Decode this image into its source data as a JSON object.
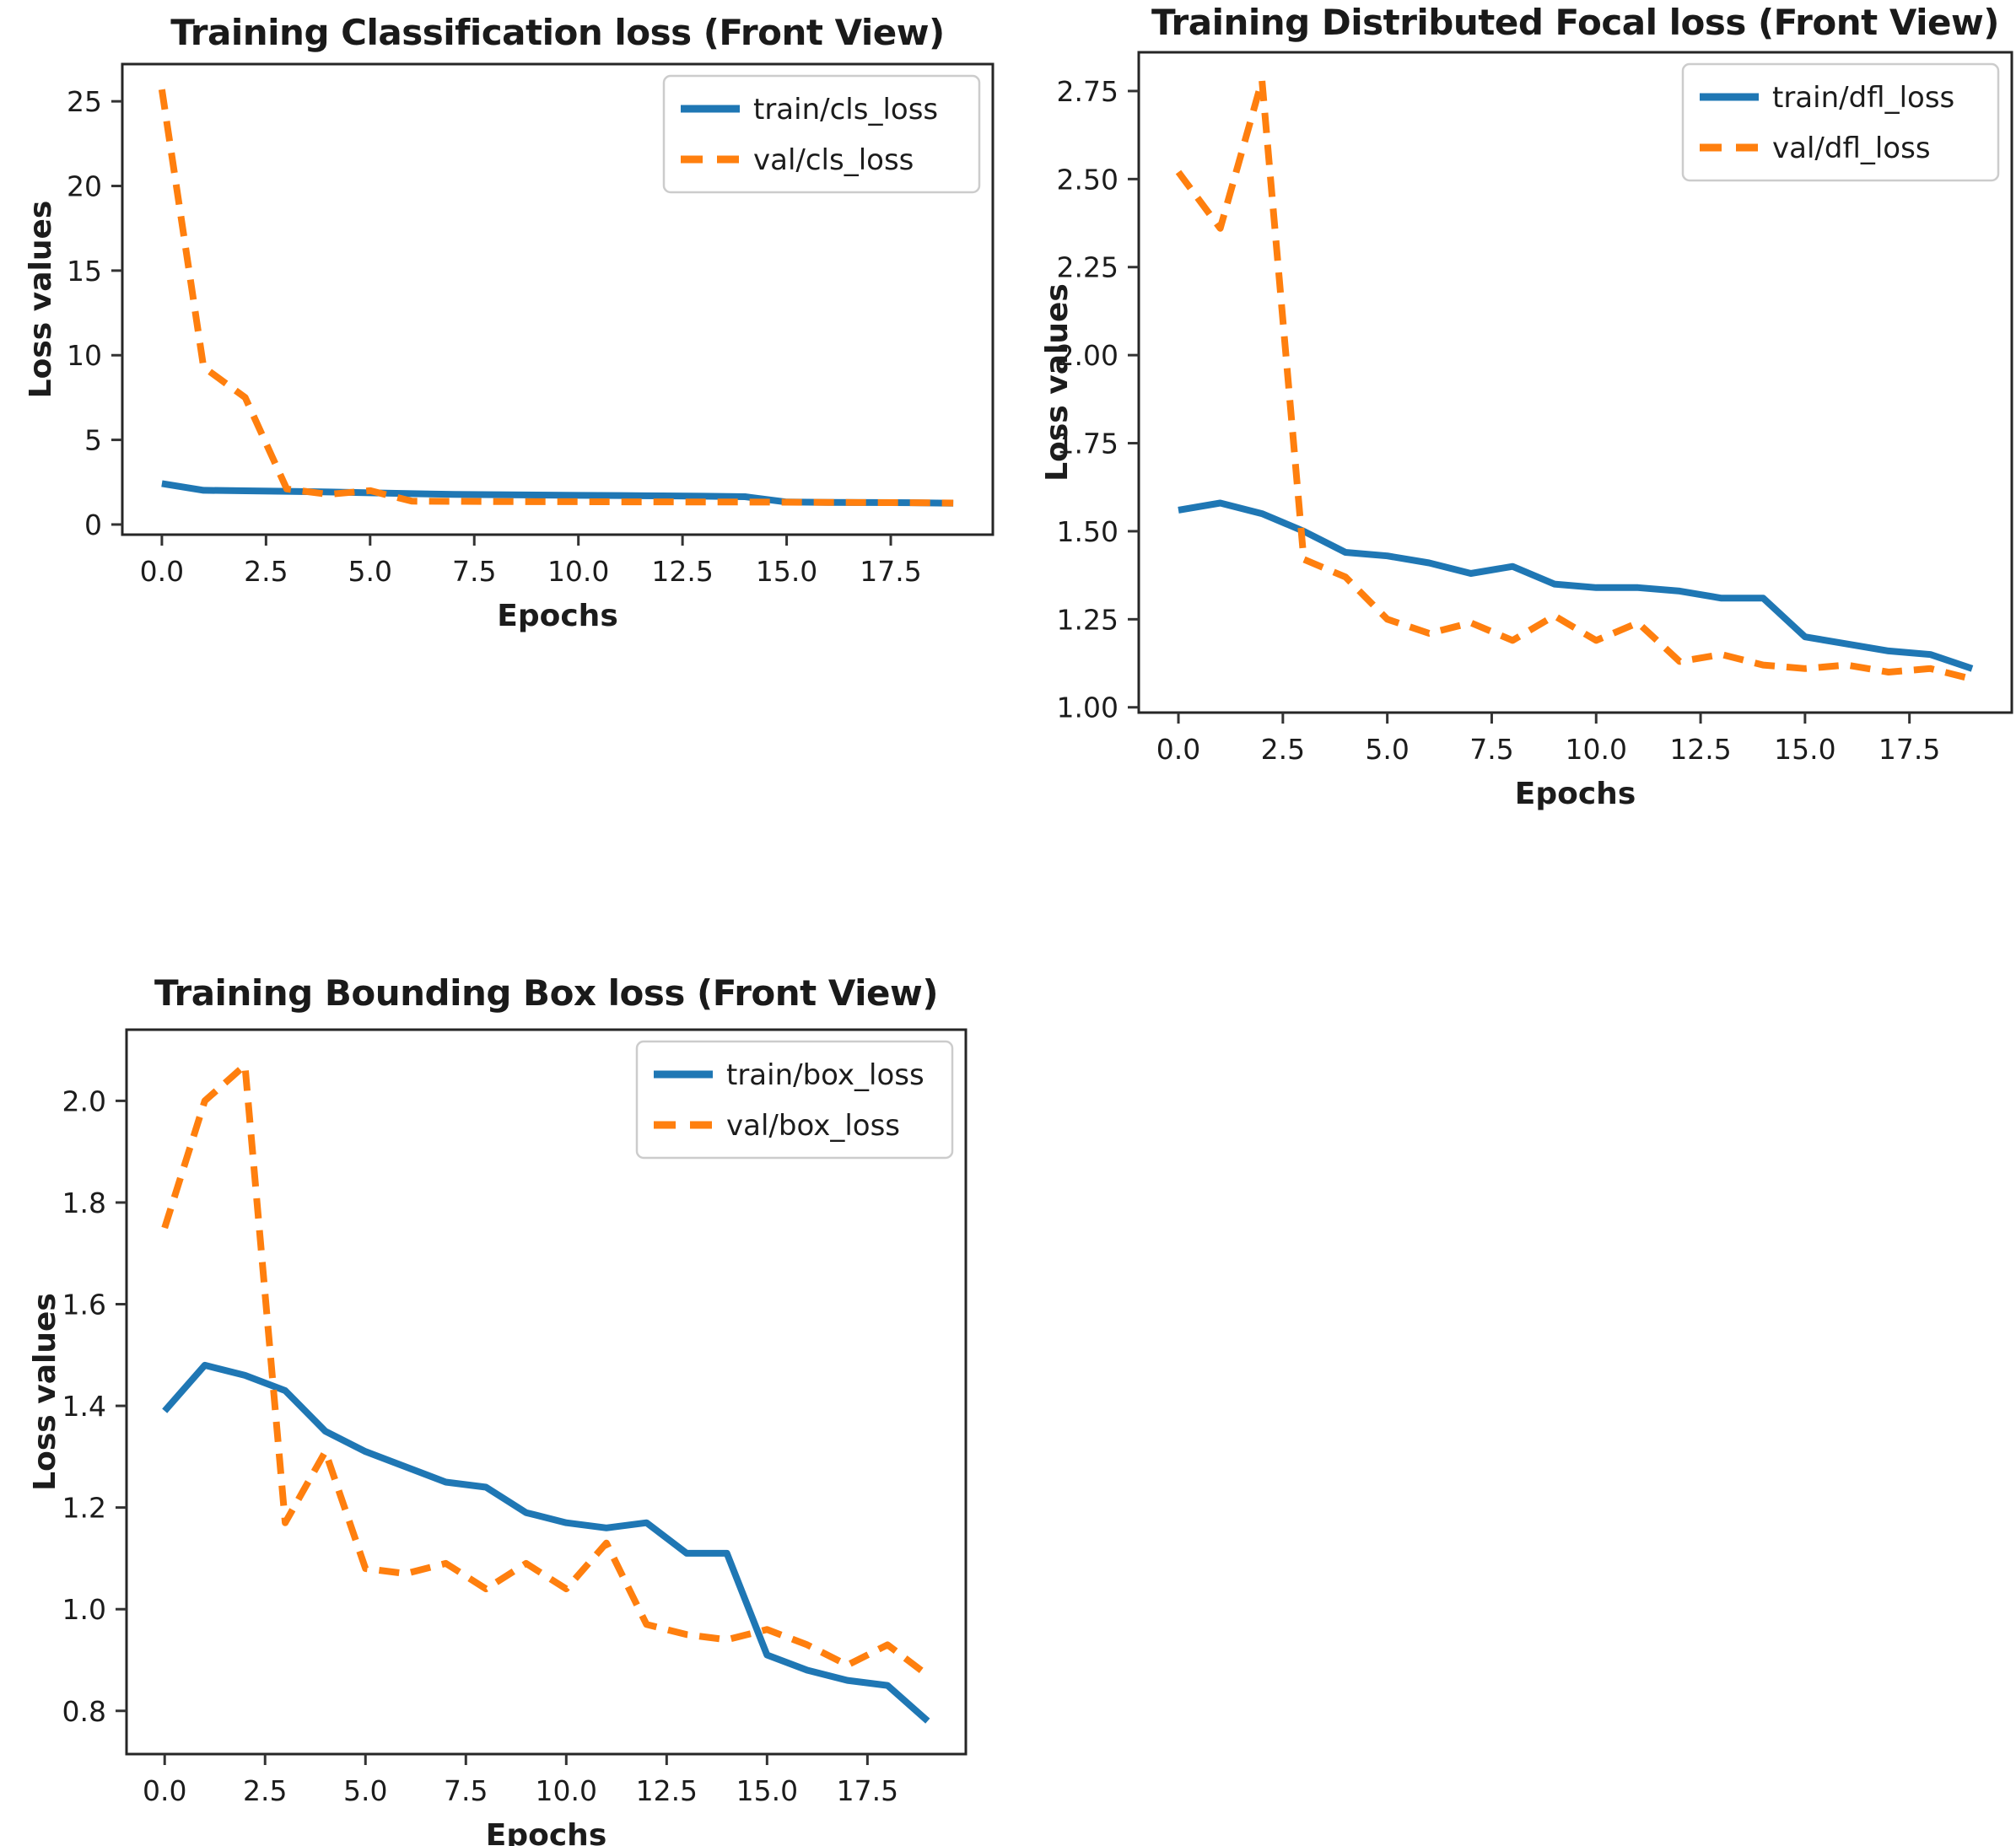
{
  "page": {
    "background": "#ffffff"
  },
  "chart_data": [
    {
      "type": "line",
      "title": "Training Classification loss (Front View)",
      "xlabel": "Epochs",
      "ylabel": "Loss values",
      "x": [
        0,
        1,
        2,
        3,
        4,
        5,
        6,
        7,
        8,
        9,
        10,
        11,
        12,
        13,
        14,
        15,
        16,
        17,
        18,
        19
      ],
      "series": [
        {
          "name": "train/cls_loss",
          "color": "#1f77b4",
          "line_style": "solid",
          "values": [
            2.42,
            2.02,
            1.99,
            1.96,
            1.92,
            1.87,
            1.82,
            1.78,
            1.76,
            1.74,
            1.72,
            1.71,
            1.69,
            1.67,
            1.64,
            1.33,
            1.31,
            1.3,
            1.29,
            1.26
          ]
        },
        {
          "name": "val/cls_loss",
          "color": "#ff7f0e",
          "line_style": "dashed",
          "values": [
            25.7,
            9.3,
            7.5,
            2.1,
            1.78,
            2.0,
            1.38,
            1.37,
            1.36,
            1.35,
            1.35,
            1.34,
            1.34,
            1.33,
            1.33,
            1.32,
            1.31,
            1.3,
            1.29,
            1.27
          ]
        }
      ],
      "xlim": [
        -0.95,
        19.95
      ],
      "ylim": [
        -0.6,
        27.2
      ],
      "xticks": [
        0.0,
        2.5,
        5.0,
        7.5,
        10.0,
        12.5,
        15.0,
        17.5
      ],
      "xtick_labels": [
        "0.0",
        "2.5",
        "5.0",
        "7.5",
        "10.0",
        "12.5",
        "15.0",
        "17.5"
      ],
      "yticks": [
        0,
        5,
        10,
        15,
        20,
        25
      ],
      "ytick_labels": [
        "0",
        "5",
        "10",
        "15",
        "20",
        "25"
      ],
      "legend_position": "upper right",
      "grid": false
    },
    {
      "type": "line",
      "title": "Training Distributed Focal loss (Front View)",
      "xlabel": "Epochs",
      "ylabel": "Loss values",
      "x": [
        0,
        1,
        2,
        3,
        4,
        5,
        6,
        7,
        8,
        9,
        10,
        11,
        12,
        13,
        14,
        15,
        16,
        17,
        18,
        19
      ],
      "series": [
        {
          "name": "train/dfl_loss",
          "color": "#1f77b4",
          "line_style": "solid",
          "values": [
            1.56,
            1.58,
            1.55,
            1.5,
            1.44,
            1.43,
            1.41,
            1.38,
            1.4,
            1.35,
            1.34,
            1.34,
            1.33,
            1.31,
            1.31,
            1.2,
            1.18,
            1.16,
            1.15,
            1.11
          ]
        },
        {
          "name": "val/dfl_loss",
          "color": "#ff7f0e",
          "line_style": "dashed",
          "values": [
            2.52,
            2.36,
            2.78,
            1.42,
            1.37,
            1.25,
            1.21,
            1.24,
            1.19,
            1.26,
            1.19,
            1.24,
            1.13,
            1.15,
            1.12,
            1.11,
            1.12,
            1.1,
            1.11,
            1.08
          ]
        }
      ],
      "xlim": [
        -0.95,
        19.95
      ],
      "ylim": [
        0.985,
        2.86
      ],
      "xticks": [
        0.0,
        2.5,
        5.0,
        7.5,
        10.0,
        12.5,
        15.0,
        17.5
      ],
      "xtick_labels": [
        "0.0",
        "2.5",
        "5.0",
        "7.5",
        "10.0",
        "12.5",
        "15.0",
        "17.5"
      ],
      "yticks": [
        1.0,
        1.25,
        1.5,
        1.75,
        2.0,
        2.25,
        2.5,
        2.75
      ],
      "ytick_labels": [
        "1.00",
        "1.25",
        "1.50",
        "1.75",
        "2.00",
        "2.25",
        "2.50",
        "2.75"
      ],
      "legend_position": "upper right",
      "grid": false
    },
    {
      "type": "line",
      "title": "Training Bounding Box loss (Front View)",
      "xlabel": "Epochs",
      "ylabel": "Loss values",
      "x": [
        0,
        1,
        2,
        3,
        4,
        5,
        6,
        7,
        8,
        9,
        10,
        11,
        12,
        13,
        14,
        15,
        16,
        17,
        18,
        19
      ],
      "series": [
        {
          "name": "train/box_loss",
          "color": "#1f77b4",
          "line_style": "solid",
          "values": [
            1.39,
            1.48,
            1.46,
            1.43,
            1.35,
            1.31,
            1.28,
            1.25,
            1.24,
            1.19,
            1.17,
            1.16,
            1.17,
            1.11,
            1.11,
            0.91,
            0.88,
            0.86,
            0.85,
            0.78
          ]
        },
        {
          "name": "val/box_loss",
          "color": "#ff7f0e",
          "line_style": "dashed",
          "values": [
            1.75,
            2.0,
            2.07,
            1.17,
            1.31,
            1.08,
            1.07,
            1.09,
            1.04,
            1.09,
            1.04,
            1.13,
            0.97,
            0.95,
            0.94,
            0.96,
            0.93,
            0.89,
            0.93,
            0.87
          ]
        }
      ],
      "xlim": [
        -0.95,
        19.95
      ],
      "ylim": [
        0.715,
        2.14
      ],
      "xticks": [
        0.0,
        2.5,
        5.0,
        7.5,
        10.0,
        12.5,
        15.0,
        17.5
      ],
      "xtick_labels": [
        "0.0",
        "2.5",
        "5.0",
        "7.5",
        "10.0",
        "12.5",
        "15.0",
        "17.5"
      ],
      "yticks": [
        0.8,
        1.0,
        1.2,
        1.4,
        1.6,
        1.8,
        2.0
      ],
      "ytick_labels": [
        "0.8",
        "1.0",
        "1.2",
        "1.4",
        "1.6",
        "1.8",
        "2.0"
      ],
      "legend_position": "upper right",
      "grid": false
    }
  ]
}
